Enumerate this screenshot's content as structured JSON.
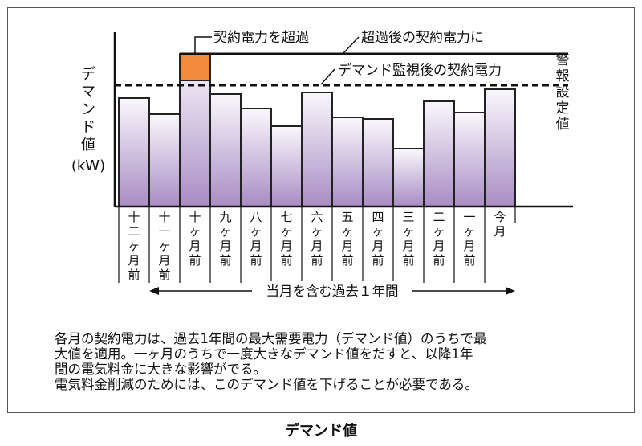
{
  "chart_data": {
    "type": "bar",
    "ylabel": [
      "デ",
      "マ",
      "ン",
      "ド",
      "値",
      "(kW)"
    ],
    "categories": [
      "十二ヶ月前",
      "十一ヶ月前",
      "十ヶ月前",
      "九ヶ月前",
      "八ヶ月前",
      "七ヶ月前",
      "六ヶ月前",
      "五ヶ月前",
      "四ヶ月前",
      "三ヶ月前",
      "二ヶ月前",
      "一ヶ月前",
      "今月"
    ],
    "values": [
      135,
      115,
      190,
      140,
      122,
      100,
      142,
      111,
      109,
      72,
      131,
      117,
      146
    ],
    "ylim": [
      0,
      215
    ],
    "bar_colors": {
      "top": "#faf8fc",
      "bottom": "#a88cc4",
      "edge": "#222222"
    },
    "exceed_color": "#f08a3c",
    "contract_before": 190,
    "demand_alarm_level": 151,
    "exceed_month_index": 2,
    "annotations": {
      "exceed": "契約電力を超過",
      "after_exceed": "超過後の契約電力に",
      "after_monitor": "デマンド監視後の契約電力",
      "alarm": [
        "警",
        "報",
        "設",
        "定",
        "値"
      ]
    },
    "period_label": "当月を含む過去１年間"
  },
  "description": [
    "各月の契約電力は、過去1年間の最大需要電力（デマンド値）のうちで最",
    "大値を適用。一ヶ月のうちで一度大きなデマンド値をだすと、以降1年",
    "間の電気料金に大きな影響がでる。",
    "電気料金削減のためには、このデマンド値を下げることが必要である。"
  ],
  "caption": "デマンド値"
}
